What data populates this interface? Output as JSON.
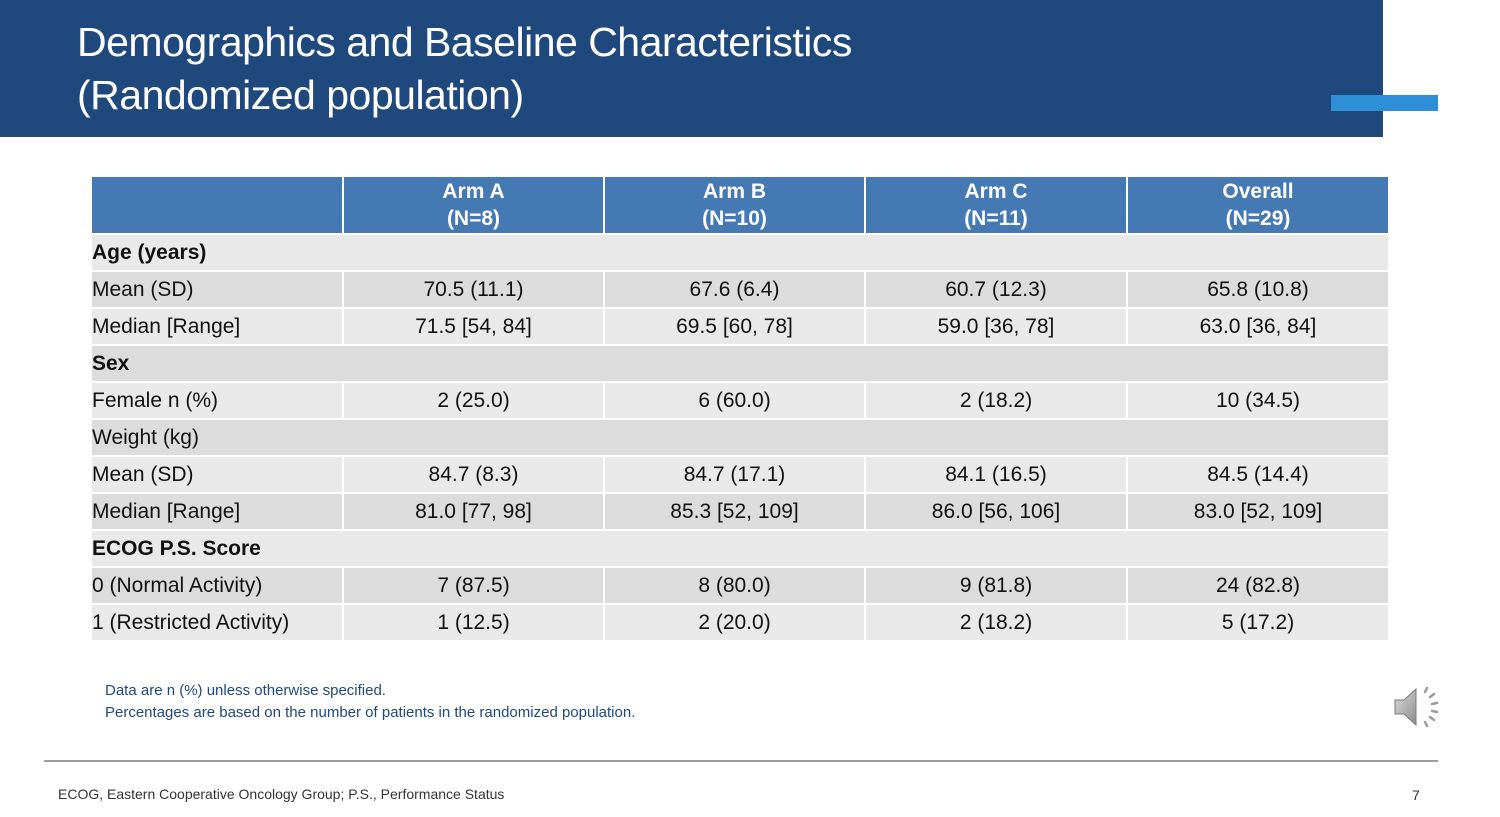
{
  "slide": {
    "title_line1": "Demographics and Baseline Characteristics",
    "title_line2": "(Randomized population)",
    "page_number": "7",
    "footnote": "ECOG, Eastern Cooperative Oncology Group; P.S., Performance Status"
  },
  "table": {
    "columns": [
      {
        "name": "Arm A",
        "n": "(N=8)"
      },
      {
        "name": "Arm B",
        "n": "(N=10)"
      },
      {
        "name": "Arm C",
        "n": "(N=11)"
      },
      {
        "name": "Overall",
        "n": "(N=29)"
      }
    ],
    "rows": [
      {
        "kind": "section",
        "bold": true,
        "label": "Age (years)"
      },
      {
        "kind": "data",
        "label": "Mean (SD)",
        "values": [
          "70.5 (11.1)",
          "67.6 (6.4)",
          "60.7 (12.3)",
          "65.8 (10.8)"
        ]
      },
      {
        "kind": "data",
        "label": "Median [Range]",
        "values": [
          "71.5 [54, 84]",
          "69.5 [60, 78]",
          "59.0 [36, 78]",
          "63.0 [36, 84]"
        ]
      },
      {
        "kind": "section",
        "bold": true,
        "label": "Sex"
      },
      {
        "kind": "data",
        "label": "Female n (%)",
        "values": [
          "2 (25.0)",
          "6 (60.0)",
          "2 (18.2)",
          "10 (34.5)"
        ]
      },
      {
        "kind": "section",
        "bold": false,
        "label": "Weight (kg)"
      },
      {
        "kind": "data",
        "label": "Mean (SD)",
        "values": [
          "84.7 (8.3)",
          "84.7 (17.1)",
          "84.1 (16.5)",
          "84.5 (14.4)"
        ]
      },
      {
        "kind": "data",
        "label": "Median [Range]",
        "values": [
          "81.0 [77, 98]",
          "85.3 [52, 109]",
          "86.0 [56, 106]",
          "83.0 [52, 109]"
        ]
      },
      {
        "kind": "section",
        "bold": true,
        "label": "ECOG P.S. Score"
      },
      {
        "kind": "data",
        "label": "0 (Normal Activity)",
        "values": [
          "7 (87.5)",
          "8 (80.0)",
          "9 (81.8)",
          "24 (82.8)"
        ]
      },
      {
        "kind": "data",
        "label": "1 (Restricted Activity)",
        "values": [
          "1 (12.5)",
          "2 (20.0)",
          "2 (18.2)",
          "5 (17.2)"
        ]
      }
    ]
  },
  "notes": {
    "line1": "Data are n (%) unless otherwise specified.",
    "line2": "Percentages are based on the number of patients in the randomized population."
  },
  "audio": {
    "icon": "speaker-icon"
  },
  "colors": {
    "header": "#1f497d",
    "accent": "#2e8fd6",
    "table_header": "#4479b3"
  }
}
